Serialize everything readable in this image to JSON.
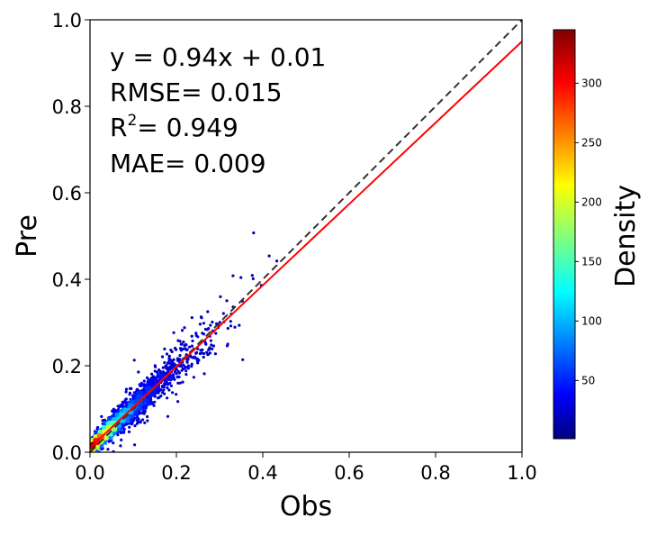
{
  "chart_data": {
    "type": "scatter",
    "xlabel": "Obs",
    "ylabel": "Pre",
    "xlim": [
      0.0,
      1.0
    ],
    "ylim": [
      0.0,
      1.0
    ],
    "xticks": [
      "0.0",
      "0.2",
      "0.4",
      "0.6",
      "0.8",
      "1.0"
    ],
    "yticks": [
      "0.0",
      "0.2",
      "0.4",
      "0.6",
      "0.8",
      "1.0"
    ],
    "grid": false,
    "annotations": [
      "y = 0.94x + 0.01",
      "RMSE= 0.015",
      "R",
      "2",
      "= 0.949",
      "MAE= 0.009"
    ],
    "fit_line": {
      "slope": 0.94,
      "intercept": 0.01,
      "color": "#ff0000"
    },
    "identity_line": {
      "slope": 1.0,
      "intercept": 0.0,
      "color": "#333333",
      "style": "dashed"
    },
    "point_distribution": {
      "x_range": [
        0.0,
        0.5
      ],
      "densest_region_x": [
        0.02,
        0.15
      ],
      "note_color_by": "Density"
    },
    "colorbar": {
      "label": "Density",
      "colormap": "jet",
      "range": [
        1,
        345
      ],
      "ticks": [
        "50",
        "100",
        "150",
        "200",
        "250",
        "300"
      ]
    }
  }
}
